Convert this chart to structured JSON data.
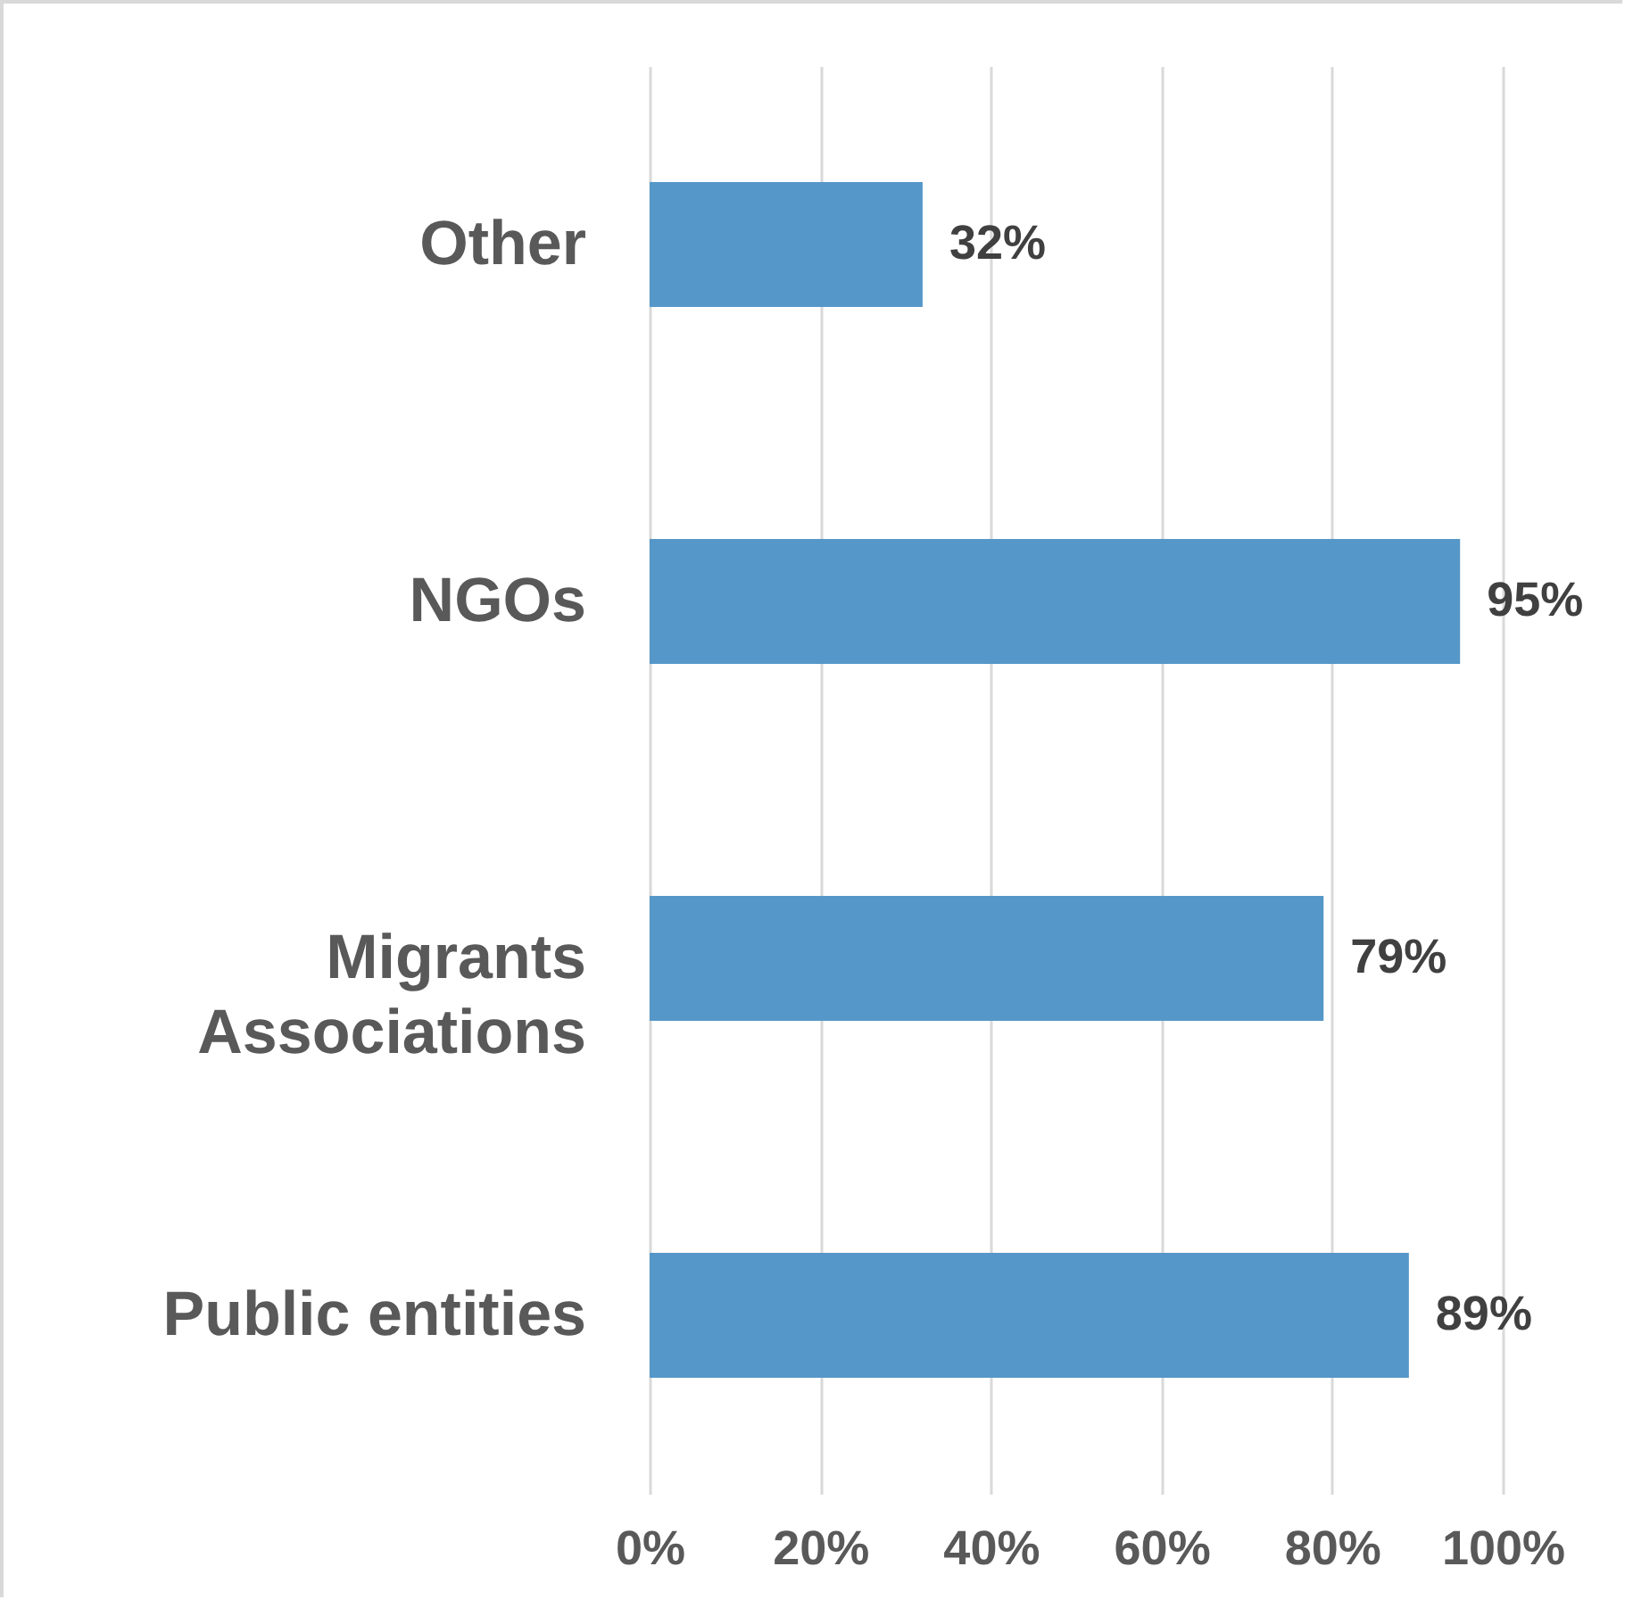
{
  "chart_data": {
    "type": "bar",
    "orientation": "horizontal",
    "categories": [
      "Other",
      "NGOs",
      "Migrants Associations",
      "Public entities"
    ],
    "values": [
      32,
      95,
      79,
      89
    ],
    "value_labels": [
      "32%",
      "95%",
      "79%",
      "89%"
    ],
    "color": "#5597c8",
    "xlim": [
      0,
      100
    ],
    "xticks": [
      {
        "value": 0,
        "label": "0%"
      },
      {
        "value": 20,
        "label": "20%"
      },
      {
        "value": 40,
        "label": "40%"
      },
      {
        "value": 60,
        "label": "60%"
      },
      {
        "value": 80,
        "label": "80%"
      },
      {
        "value": 100,
        "label": "100%"
      }
    ],
    "grid": "x"
  }
}
